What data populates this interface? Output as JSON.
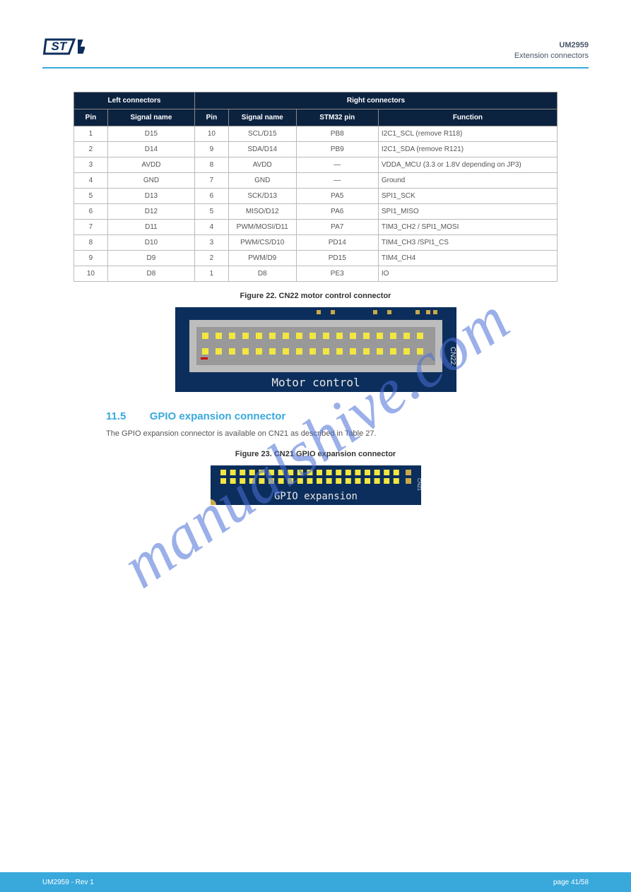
{
  "header": {
    "section_code": "UM2959",
    "section_name": "Extension connectors"
  },
  "table": {
    "group_headers": [
      "Left connectors",
      "Right connectors"
    ],
    "columns": [
      "Pin",
      "Signal name",
      "Pin",
      "Signal name",
      "STM32 pin",
      "Function"
    ],
    "col_widths": [
      "7%",
      "18%",
      "7%",
      "14%",
      "17%",
      "37%"
    ],
    "header_bg": "#0c2340",
    "header_fg": "#ffffff",
    "rows": [
      [
        "1",
        "D15",
        "10",
        "SCL/D15",
        "PB8",
        "I2C1_SCL (remove R118)"
      ],
      [
        "2",
        "D14",
        "9",
        "SDA/D14",
        "PB9",
        "I2C1_SDA (remove R121)"
      ],
      [
        "3",
        "AVDD",
        "8",
        "AVDD",
        "—",
        "VDDA_MCU (3.3 or 1.8V depending on JP3)"
      ],
      [
        "4",
        "GND",
        "7",
        "GND",
        "—",
        "Ground"
      ],
      [
        "5",
        "D13",
        "6",
        "SCK/D13",
        "PA5",
        "SPI1_SCK"
      ],
      [
        "6",
        "D12",
        "5",
        "MISO/D12",
        "PA6",
        "SPI1_MISO"
      ],
      [
        "7",
        "D11",
        "4",
        "PWM/MOSI/D11",
        "PA7",
        "TIM3_CH2 / SPI1_MOSI"
      ],
      [
        "8",
        "D10",
        "3",
        "PWM/CS/D10",
        "PD14",
        "TIM4_CH3 /SPI1_CS"
      ],
      [
        "9",
        "D9",
        "2",
        "PWM/D9",
        "PD15",
        "TIM4_CH4"
      ],
      [
        "10",
        "D8",
        "1",
        "D8",
        "PE3",
        "IO"
      ]
    ]
  },
  "figure22": {
    "title": "Figure 22. CN22 motor control connector",
    "label_text": "Motor control",
    "side_label": "CN22",
    "board_color": "#0c2e5c",
    "connector_body": "#bdbdbd",
    "connector_inner": "#999999",
    "pin_color": "#f2e641",
    "top_pad_color": "#c9a94a"
  },
  "section": {
    "number": "11.5",
    "title": "GPIO expansion connector",
    "body": "The GPIO expansion connector is available on CN21 as described in Table 27."
  },
  "figure23": {
    "title": "Figure 23. CN21 GPIO expansion connector",
    "label_text": "GPIO expansion",
    "side_label": "CN21",
    "board_color": "#0c2e5c",
    "pin_color": "#f2e641",
    "end_pad_color": "#c9a94a"
  },
  "watermark": {
    "text": "manualshive.com"
  },
  "footer": {
    "left": "UM2959 - Rev 1",
    "center": "",
    "right": "page 41/58"
  }
}
